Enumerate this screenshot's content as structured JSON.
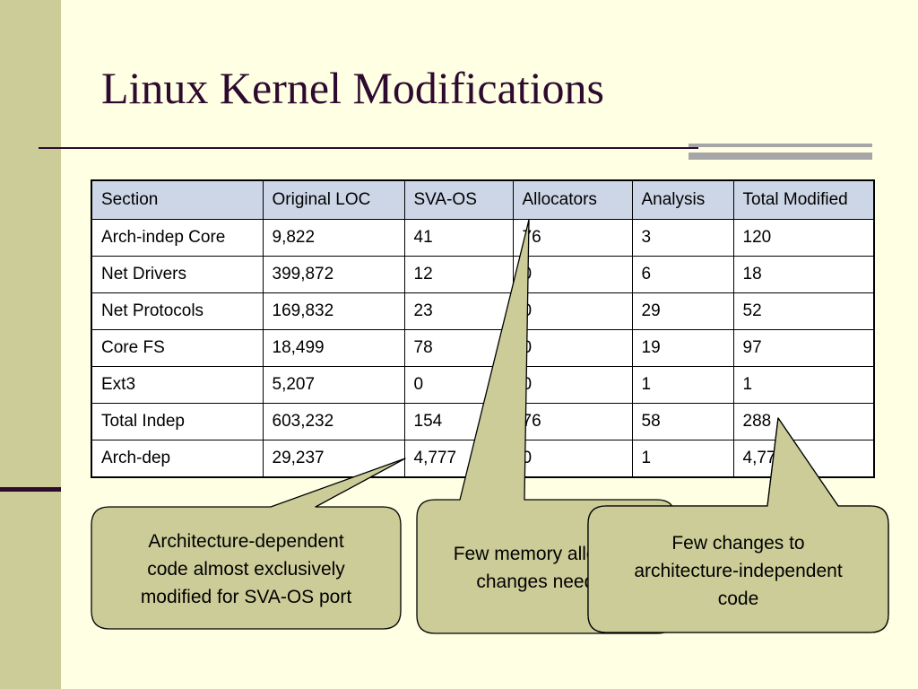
{
  "slide": {
    "title": "Linux Kernel Modifications"
  },
  "table": {
    "headers": [
      "Section",
      "Original LOC",
      "SVA-OS",
      "Allocators",
      "Analysis",
      "Total Modified"
    ],
    "rows": [
      [
        "Arch-indep Core",
        "9,822",
        "41",
        "76",
        "3",
        "120"
      ],
      [
        "Net Drivers",
        "399,872",
        "12",
        "0",
        "6",
        "18"
      ],
      [
        "Net Protocols",
        "169,832",
        "23",
        "0",
        "29",
        "52"
      ],
      [
        "Core FS",
        "18,499",
        "78",
        "0",
        "19",
        "97"
      ],
      [
        "Ext3",
        "5,207",
        "0",
        "0",
        "1",
        "1"
      ],
      [
        "Total Indep",
        "603,232",
        "154",
        "76",
        "58",
        "288"
      ],
      [
        "Arch-dep",
        "29,237",
        "4,777",
        "0",
        "1",
        "4,778"
      ]
    ]
  },
  "callouts": {
    "arch_dep": {
      "line1": "Architecture-dependent",
      "line2": "code almost exclusively",
      "line3": "modified for SVA-OS port"
    },
    "allocators": {
      "line1": "Few memory allocator",
      "line2": "changes needed"
    },
    "indep": {
      "line1": "Few changes to",
      "line2": "architecture-independent",
      "line3": "code"
    }
  },
  "colors": {
    "background": "#ffffe4",
    "side_bar": "#cccc99",
    "title": "#2e0a2e",
    "table_header": "#cdd6e6",
    "callout_fill": "#cccc99"
  }
}
